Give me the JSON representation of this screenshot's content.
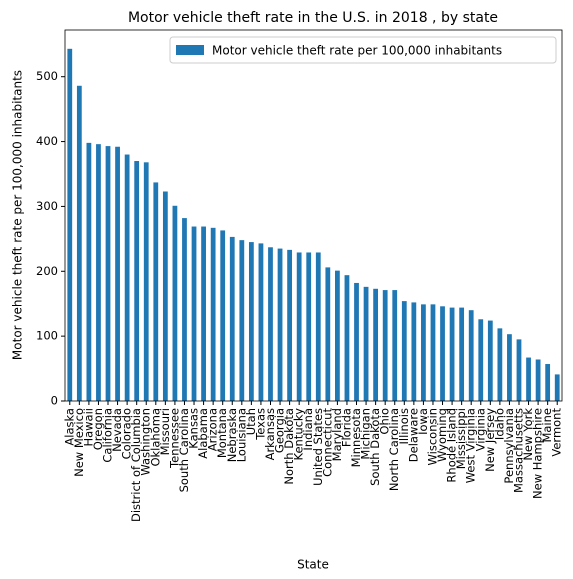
{
  "chart_data": {
    "type": "bar",
    "title": "Motor vehicle theft rate in the U.S. in 2018 , by state",
    "x_label": "State",
    "y_label": "Motor vehicle theft rate per 100,000 inhabitants",
    "categories": [
      "Alaska",
      "New Mexico",
      "Hawaii",
      "Oregon",
      "California",
      "Nevada",
      "Colorado",
      "District of Columbia",
      "Washington",
      "Oklahoma",
      "Missouri",
      "Tennessee",
      "South Carolina",
      "Kansas",
      "Alabama",
      "Arizona",
      "Montana",
      "Nebraska",
      "Louisiana",
      "Utah",
      "Texas",
      "Arkansas",
      "Georgia",
      "North Dakota",
      "Kentucky",
      "Indiana",
      "United States",
      "Connecticut",
      "Maryland",
      "Florida",
      "Minnesota",
      "Michigan",
      "South Dakota",
      "Ohio",
      "North Carolina",
      "Illinois",
      "Delaware",
      "Iowa",
      "Wisconsin",
      "Wyoming",
      "Rhode Island",
      "Mississippi",
      "West Virginia",
      "Virginia",
      "New Jersey",
      "Idaho",
      "Pennsylvania",
      "Massachusetts",
      "New York",
      "New Hampshire",
      "Maine",
      "Vermont"
    ],
    "series": [
      {
        "name": "Motor vehicle theft rate per 100,000 inhabitants",
        "color": "#1f77b4",
        "values": [
          543,
          486,
          398,
          396,
          393,
          392,
          380,
          370,
          368,
          337,
          323,
          301,
          282,
          269,
          269,
          267,
          263,
          253,
          248,
          245,
          243,
          237,
          235,
          233,
          229,
          229,
          229,
          206,
          201,
          194,
          182,
          176,
          173,
          171,
          171,
          154,
          152,
          149,
          149,
          146,
          144,
          144,
          140,
          126,
          124,
          112,
          103,
          95,
          67,
          64,
          57,
          41
        ]
      }
    ],
    "ylim": [
      0,
      572
    ],
    "yticks": [
      0,
      100,
      200,
      300,
      400,
      500
    ],
    "legend": "upper right"
  }
}
